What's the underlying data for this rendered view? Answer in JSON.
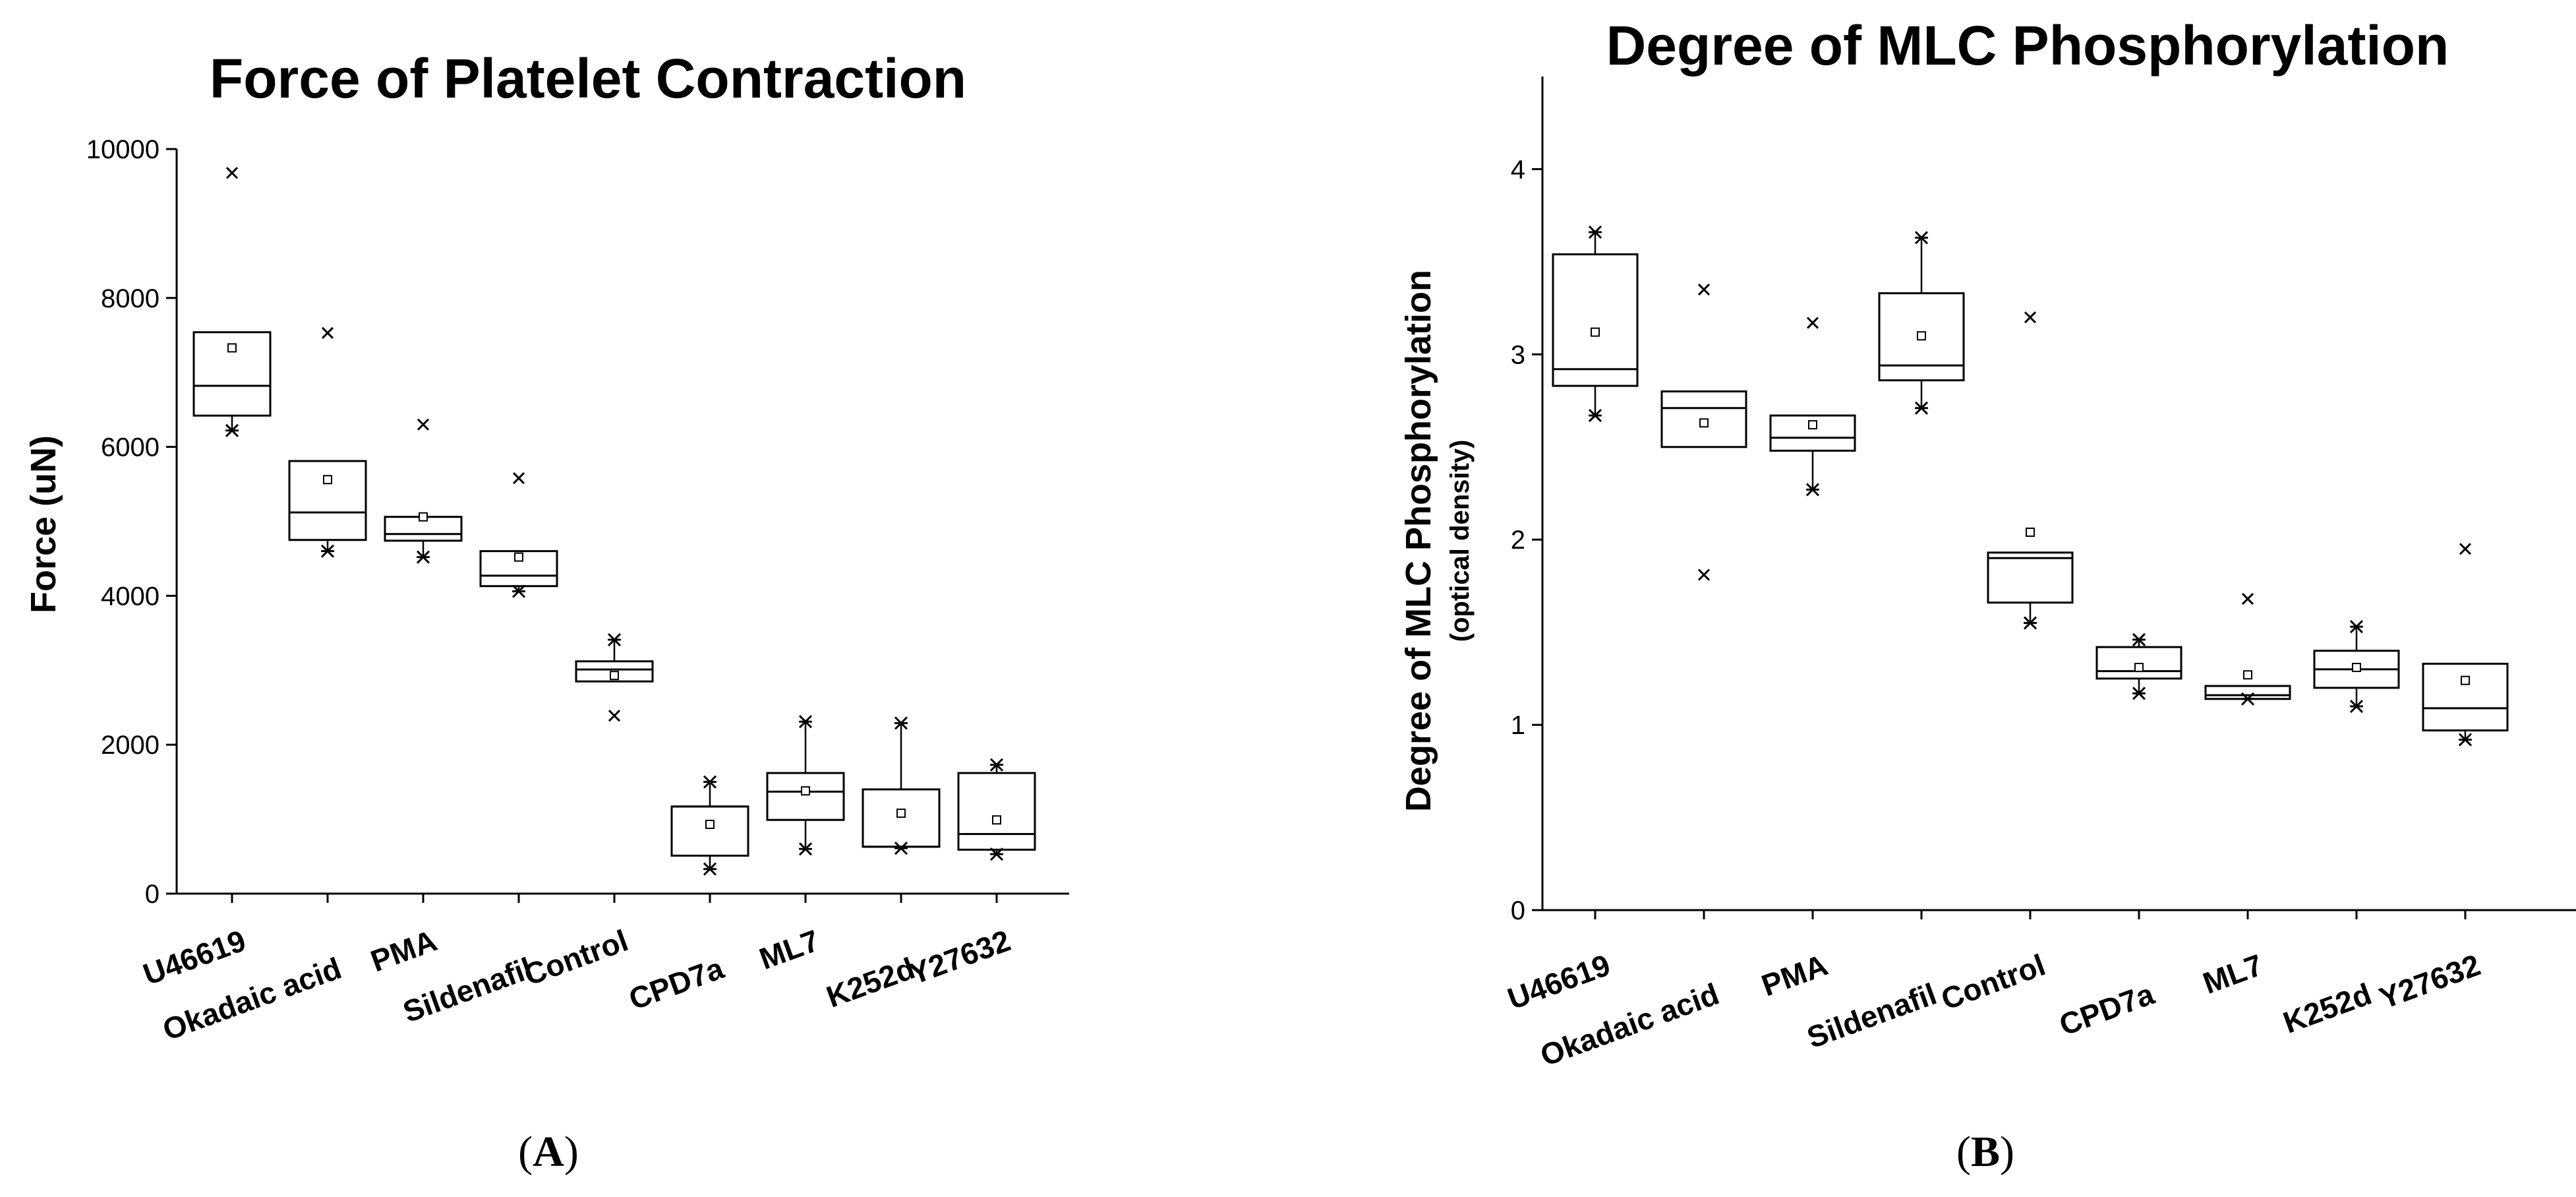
{
  "chart_data": [
    {
      "type": "box",
      "title": "Force of Platelet Contraction",
      "ylabel": "Force (uN)",
      "ylabel_sub": "",
      "xlabel": "",
      "ylim": [
        0,
        10000
      ],
      "yticks": [
        0,
        2000,
        4000,
        6000,
        8000,
        10000
      ],
      "panel_label": "A",
      "categories": [
        "U46619",
        "Okadaic acid",
        "PMA",
        "Sildenafil",
        "Control",
        "CPD7a",
        "ML7",
        "K252d",
        "Y27632"
      ],
      "boxes": [
        {
          "q1": 6420,
          "median": 6820,
          "q3": 7540,
          "mean": 7330,
          "whisker_low": 6220,
          "whisker_high": 7540,
          "min": 6220,
          "max": 9680,
          "outliers": [
            9680
          ]
        },
        {
          "q1": 4750,
          "median": 5120,
          "q3": 5810,
          "mean": 5560,
          "whisker_low": 4600,
          "whisker_high": 5810,
          "min": 4600,
          "max": 7530,
          "outliers": [
            7530
          ]
        },
        {
          "q1": 4740,
          "median": 4830,
          "q3": 5060,
          "mean": 5060,
          "whisker_low": 4520,
          "whisker_high": 5060,
          "min": 4520,
          "max": 6300,
          "outliers": [
            6300
          ]
        },
        {
          "q1": 4130,
          "median": 4270,
          "q3": 4600,
          "mean": 4520,
          "whisker_low": 4060,
          "whisker_high": 4600,
          "min": 4060,
          "max": 5580,
          "outliers": [
            5580
          ]
        },
        {
          "q1": 2850,
          "median": 3010,
          "q3": 3120,
          "mean": 2930,
          "whisker_low": 2850,
          "whisker_high": 3410,
          "min": 2390,
          "max": 3410,
          "outliers": [
            2390
          ]
        },
        {
          "q1": 510,
          "median": 1170,
          "q3": 1170,
          "mean": 930,
          "whisker_low": 330,
          "whisker_high": 1500,
          "min": 330,
          "max": 1500,
          "outliers": []
        },
        {
          "q1": 990,
          "median": 1370,
          "q3": 1620,
          "mean": 1380,
          "whisker_low": 600,
          "whisker_high": 2310,
          "min": 600,
          "max": 2310,
          "outliers": []
        },
        {
          "q1": 630,
          "median": 630,
          "q3": 1400,
          "mean": 1080,
          "whisker_low": 610,
          "whisker_high": 2290,
          "min": 610,
          "max": 2290,
          "outliers": []
        },
        {
          "q1": 590,
          "median": 800,
          "q3": 1620,
          "mean": 990,
          "whisker_low": 530,
          "whisker_high": 1730,
          "min": 530,
          "max": 1730,
          "outliers": []
        }
      ]
    },
    {
      "type": "box",
      "title": "Degree of MLC Phosphorylation",
      "ylabel": "Degree of MLC Phosphorylation",
      "ylabel_sub": "(optical density)",
      "xlabel": "",
      "ylim": [
        0,
        4.5
      ],
      "yticks": [
        0,
        1,
        2,
        3,
        4
      ],
      "panel_label": "B",
      "categories": [
        "U46619",
        "Okadaic acid",
        "PMA",
        "Sildenafil",
        "Control",
        "CPD7a",
        "ML7",
        "K252d",
        "Y27632"
      ],
      "boxes": [
        {
          "q1": 2.83,
          "median": 2.92,
          "q3": 3.54,
          "mean": 3.12,
          "whisker_low": 2.67,
          "whisker_high": 3.66,
          "min": 2.67,
          "max": 3.66,
          "outliers": []
        },
        {
          "q1": 2.5,
          "median": 2.71,
          "q3": 2.8,
          "mean": 2.63,
          "whisker_low": 2.5,
          "whisker_high": 2.8,
          "min": 1.81,
          "max": 3.35,
          "outliers": [
            3.35,
            1.81
          ]
        },
        {
          "q1": 2.48,
          "median": 2.55,
          "q3": 2.67,
          "mean": 2.62,
          "whisker_low": 2.27,
          "whisker_high": 2.67,
          "min": 2.27,
          "max": 3.17,
          "outliers": [
            3.17
          ]
        },
        {
          "q1": 2.86,
          "median": 2.94,
          "q3": 3.33,
          "mean": 3.1,
          "whisker_low": 2.71,
          "whisker_high": 3.63,
          "min": 2.71,
          "max": 3.63,
          "outliers": []
        },
        {
          "q1": 1.66,
          "median": 1.9,
          "q3": 1.93,
          "mean": 2.04,
          "whisker_low": 1.55,
          "whisker_high": 1.93,
          "min": 1.55,
          "max": 3.2,
          "outliers": [
            3.2
          ]
        },
        {
          "q1": 1.25,
          "median": 1.29,
          "q3": 1.42,
          "mean": 1.31,
          "whisker_low": 1.17,
          "whisker_high": 1.46,
          "min": 1.17,
          "max": 1.46,
          "outliers": []
        },
        {
          "q1": 1.14,
          "median": 1.16,
          "q3": 1.21,
          "mean": 1.27,
          "whisker_low": 1.14,
          "whisker_high": 1.21,
          "min": 1.14,
          "max": 1.68,
          "outliers": [
            1.68
          ]
        },
        {
          "q1": 1.2,
          "median": 1.3,
          "q3": 1.4,
          "mean": 1.31,
          "whisker_low": 1.1,
          "whisker_high": 1.53,
          "min": 1.1,
          "max": 1.53,
          "outliers": []
        },
        {
          "q1": 0.97,
          "median": 1.09,
          "q3": 1.33,
          "mean": 1.24,
          "whisker_low": 0.92,
          "whisker_high": 1.33,
          "min": 0.92,
          "max": 1.95,
          "outliers": [
            1.95
          ]
        }
      ]
    }
  ]
}
